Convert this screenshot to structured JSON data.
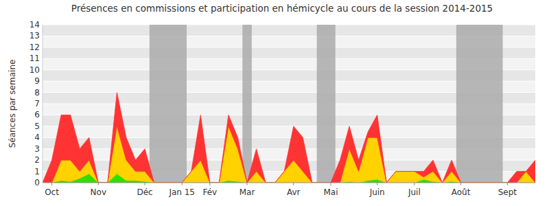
{
  "chart_data": {
    "type": "area",
    "title": "Présences en commissions et participation en hémicycle au cours de la session 2014-2015",
    "y_label": "Séances par semaine",
    "stacked": true,
    "grid": true,
    "categories": [
      null,
      "Oct",
      null,
      null,
      null,
      null,
      "Nov",
      null,
      null,
      null,
      null,
      "Déc",
      null,
      null,
      null,
      "Jan 15",
      null,
      null,
      "Fév",
      null,
      null,
      null,
      "Mar",
      null,
      null,
      null,
      null,
      "Avr",
      null,
      null,
      null,
      "Mai",
      null,
      null,
      null,
      null,
      "Juin",
      null,
      null,
      null,
      "Juil",
      null,
      null,
      null,
      null,
      "Août",
      null,
      null,
      null,
      null,
      "Sept",
      null,
      null,
      null
    ],
    "series": [
      {
        "color": "#33dd00",
        "values": [
          0,
          0,
          0.2,
          0.1,
          0.4,
          0.8,
          0,
          0,
          0.8,
          0.2,
          0.2,
          0.1,
          0,
          0,
          0,
          0,
          0,
          0,
          0,
          0,
          0.2,
          0.1,
          0,
          0,
          0,
          0,
          0,
          0,
          0,
          0,
          0,
          0,
          0,
          0.1,
          0,
          0.2,
          0.3,
          0,
          0,
          0,
          0,
          0.3,
          0.1,
          0,
          0.1,
          0,
          0,
          0,
          0,
          0,
          0,
          0,
          0,
          0
        ]
      },
      {
        "color": "#ffd200",
        "values": [
          0,
          0,
          1.8,
          1.9,
          0.6,
          1.2,
          0,
          0,
          4.2,
          1.8,
          0.8,
          0.9,
          0,
          0,
          0,
          0,
          1,
          2,
          0,
          0,
          4.8,
          2.9,
          0,
          1,
          0,
          0,
          1,
          2,
          1,
          0,
          0,
          0,
          0,
          2.9,
          1,
          3.8,
          3.7,
          0,
          1,
          1,
          1,
          0.2,
          0.9,
          0,
          0.9,
          0,
          0,
          0,
          0,
          0,
          0,
          0,
          1,
          0
        ]
      },
      {
        "color": "#ff3333",
        "values": [
          0,
          2,
          4,
          4,
          2,
          2,
          0,
          0,
          3,
          2,
          1,
          2,
          0,
          0,
          0,
          0,
          0,
          4,
          0,
          0,
          1,
          1,
          0,
          2,
          0,
          0,
          0,
          3,
          3,
          0,
          0,
          0,
          2,
          2,
          1,
          0.5,
          2,
          0,
          0,
          0,
          0,
          0.5,
          1,
          0,
          1,
          0,
          0,
          0,
          0,
          0,
          0,
          1,
          0,
          2
        ]
      }
    ],
    "bands": [
      [
        11.5,
        15.5
      ],
      [
        21.5,
        22.5
      ],
      [
        29.5,
        31.5
      ],
      [
        44.5,
        49.5
      ]
    ],
    "ylim": [
      0,
      14
    ],
    "yticks": [
      0,
      1,
      2,
      3,
      4,
      5,
      6,
      7,
      8,
      9,
      10,
      11,
      12,
      13,
      14
    ]
  }
}
